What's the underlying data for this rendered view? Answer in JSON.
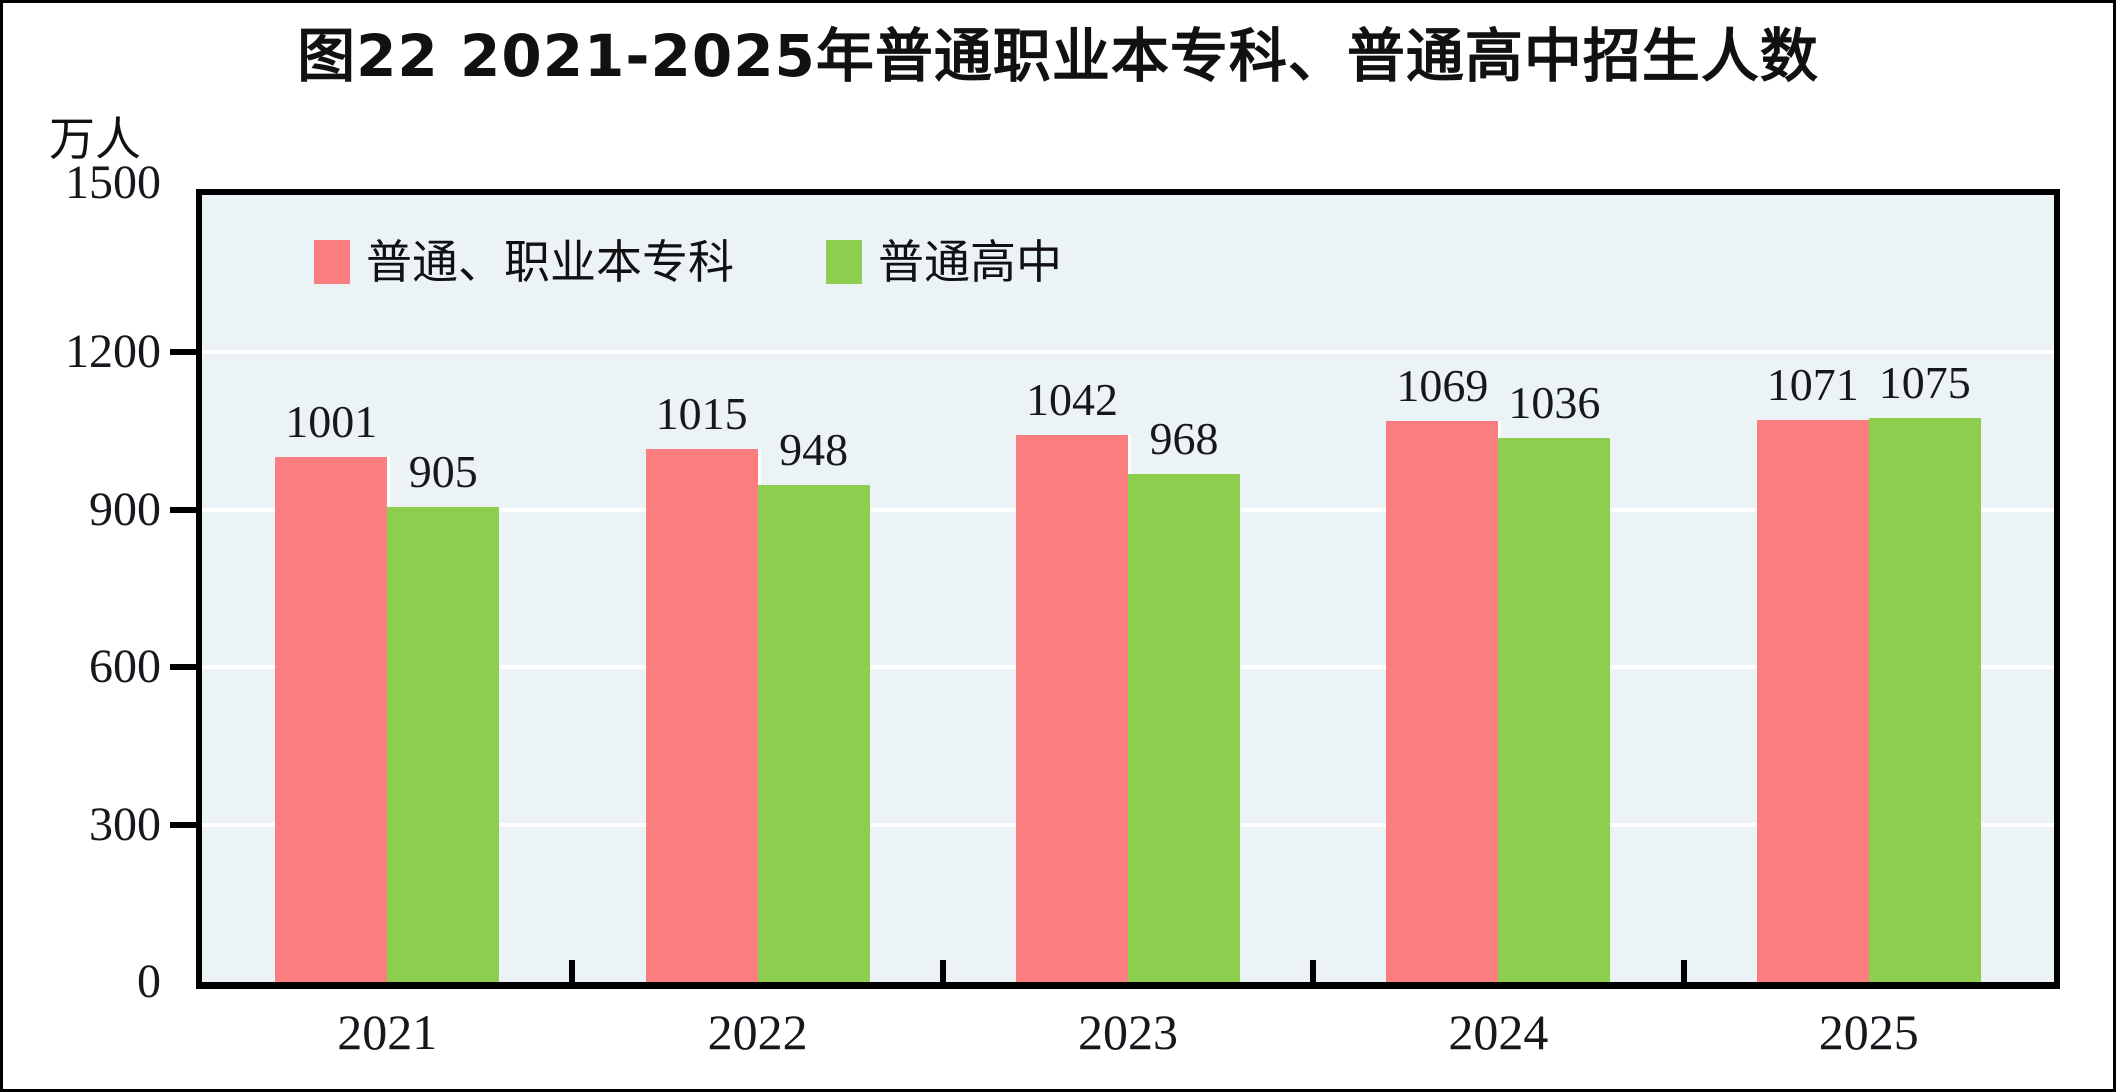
{
  "chart_data": {
    "type": "bar",
    "title": "图22  2021-2025年普通职业本专科、普通高中招生人数",
    "ylabel": "万人",
    "categories": [
      "2021",
      "2022",
      "2023",
      "2024",
      "2025"
    ],
    "series": [
      {
        "name": "普通、职业本专科",
        "color": "#fa7e80",
        "values": [
          1001,
          1015,
          1042,
          1069,
          1071
        ]
      },
      {
        "name": "普通高中",
        "color": "#8dce4f",
        "values": [
          905,
          948,
          968,
          1036,
          1075
        ]
      }
    ],
    "ylim": [
      0,
      1500
    ],
    "yticks": [
      0,
      300,
      600,
      900,
      1200,
      1500
    ],
    "grid": true,
    "grid_color": "#ffffff",
    "plot_bg": "#ecf3f6",
    "legend_position": "top-left-inside",
    "bar_value_labels": true
  }
}
